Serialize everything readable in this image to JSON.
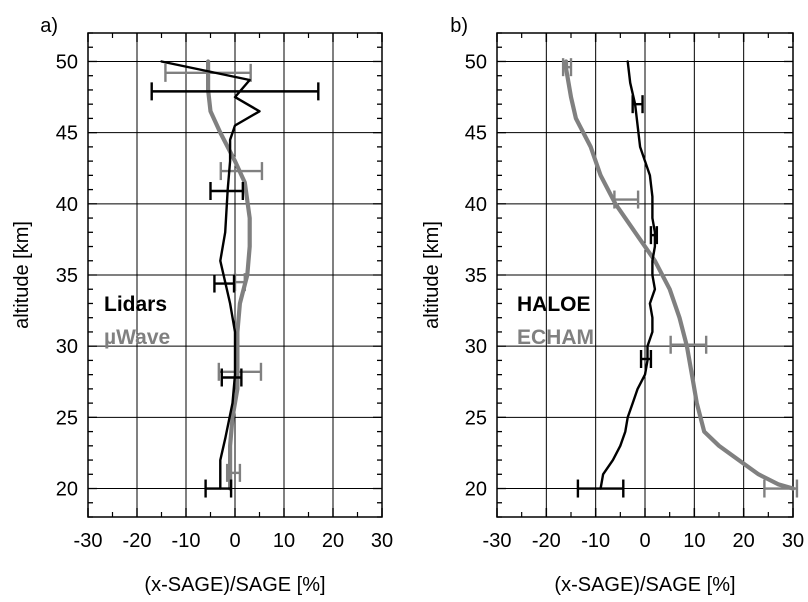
{
  "chart_data": [
    {
      "panel": "a)",
      "type": "line",
      "xlabel": "(x-SAGE)/SAGE [%]",
      "ylabel": "altitude [km]",
      "xlim": [
        -30,
        30
      ],
      "ylim": [
        18,
        52
      ],
      "xticks": [
        -30,
        -20,
        -10,
        0,
        10,
        20,
        30
      ],
      "yticks": [
        20,
        25,
        30,
        35,
        40,
        45,
        50
      ],
      "grid": true,
      "legend_position": "middle-left",
      "series": [
        {
          "name": "Lidars",
          "color": "#000000",
          "points": [
            {
              "x": -15,
              "y": 50
            },
            {
              "x": 3,
              "y": 48.7
            },
            {
              "x": 0,
              "y": 47.5
            },
            {
              "x": 5,
              "y": 46.5
            },
            {
              "x": 0,
              "y": 45.5
            },
            {
              "x": -1,
              "y": 44.5
            },
            {
              "x": -1,
              "y": 43
            },
            {
              "x": -1.5,
              "y": 41
            },
            {
              "x": -2,
              "y": 38
            },
            {
              "x": -3,
              "y": 36
            },
            {
              "x": -2,
              "y": 34.5
            },
            {
              "x": -1,
              "y": 33
            },
            {
              "x": 0,
              "y": 31
            },
            {
              "x": 0,
              "y": 28
            },
            {
              "x": -0.5,
              "y": 26
            },
            {
              "x": -2,
              "y": 23.5
            },
            {
              "x": -3,
              "y": 22
            },
            {
              "x": -3,
              "y": 21
            },
            {
              "x": -3,
              "y": 20
            }
          ],
          "error_bars": [
            {
              "x": 0,
              "y": 47.9,
              "xerr": 17
            },
            {
              "x": -1.7,
              "y": 40.9,
              "xerr": 3.3
            },
            {
              "x": -2.2,
              "y": 34.4,
              "xerr": 2
            },
            {
              "x": -0.7,
              "y": 27.8,
              "xerr": 2
            },
            {
              "x": -3.4,
              "y": 20,
              "xerr": 2.6
            }
          ]
        },
        {
          "name": "µWave",
          "color": "#808080",
          "points": [
            {
              "x": -5.5,
              "y": 50
            },
            {
              "x": -5.5,
              "y": 48
            },
            {
              "x": -5,
              "y": 46.5
            },
            {
              "x": -3,
              "y": 45
            },
            {
              "x": 0,
              "y": 43
            },
            {
              "x": 2,
              "y": 41.5
            },
            {
              "x": 3,
              "y": 39
            },
            {
              "x": 3,
              "y": 37
            },
            {
              "x": 2.5,
              "y": 35
            },
            {
              "x": 1,
              "y": 33
            },
            {
              "x": 0.5,
              "y": 31
            },
            {
              "x": 0.5,
              "y": 29
            },
            {
              "x": 0.5,
              "y": 27
            },
            {
              "x": -0.5,
              "y": 25
            },
            {
              "x": -1,
              "y": 23
            },
            {
              "x": -1,
              "y": 21
            },
            {
              "x": -1,
              "y": 20
            }
          ],
          "error_bars": [
            {
              "x": -5.5,
              "y": 49.2,
              "xerr": 8.7
            },
            {
              "x": 1.3,
              "y": 42.3,
              "xerr": 4.2
            },
            {
              "x": 1,
              "y": 34.5,
              "xerr": 1
            },
            {
              "x": 1,
              "y": 28.2,
              "xerr": 4.3
            },
            {
              "x": -0.3,
              "y": 21.1,
              "xerr": 1.3
            }
          ]
        }
      ]
    },
    {
      "panel": "b)",
      "type": "line",
      "xlabel": "(x-SAGE)/SAGE [%]",
      "ylabel": "altitude [km]",
      "xlim": [
        -30,
        30
      ],
      "ylim": [
        18,
        52
      ],
      "xticks": [
        -30,
        -20,
        -10,
        0,
        10,
        20,
        30
      ],
      "yticks": [
        20,
        25,
        30,
        35,
        40,
        45,
        50
      ],
      "grid": true,
      "legend_position": "middle-left",
      "series": [
        {
          "name": "HALOE",
          "color": "#000000",
          "points": [
            {
              "x": -3.5,
              "y": 50
            },
            {
              "x": -3,
              "y": 48.5
            },
            {
              "x": -2,
              "y": 47
            },
            {
              "x": -1.5,
              "y": 45.5
            },
            {
              "x": -1,
              "y": 44
            },
            {
              "x": 0,
              "y": 43
            },
            {
              "x": 1,
              "y": 42
            },
            {
              "x": 1.5,
              "y": 40.5
            },
            {
              "x": 1.5,
              "y": 39
            },
            {
              "x": 2,
              "y": 38
            },
            {
              "x": 2,
              "y": 37
            },
            {
              "x": 1.5,
              "y": 36
            },
            {
              "x": 1.5,
              "y": 35
            },
            {
              "x": 2,
              "y": 34
            },
            {
              "x": 1,
              "y": 33
            },
            {
              "x": 1.5,
              "y": 32
            },
            {
              "x": 1.5,
              "y": 31
            },
            {
              "x": 0.5,
              "y": 30
            },
            {
              "x": 0.5,
              "y": 29
            },
            {
              "x": 0,
              "y": 28
            },
            {
              "x": -1.5,
              "y": 27
            },
            {
              "x": -2.5,
              "y": 26
            },
            {
              "x": -3.5,
              "y": 25
            },
            {
              "x": -4,
              "y": 24
            },
            {
              "x": -5,
              "y": 23
            },
            {
              "x": -6.5,
              "y": 22
            },
            {
              "x": -8.5,
              "y": 21
            },
            {
              "x": -9,
              "y": 20
            }
          ],
          "error_bars": [
            {
              "x": -1.5,
              "y": 47,
              "xerr": 1
            },
            {
              "x": 1.8,
              "y": 37.8,
              "xerr": 0.6
            },
            {
              "x": 0.2,
              "y": 29.1,
              "xerr": 1
            },
            {
              "x": -9,
              "y": 20,
              "xerr": 4.6
            }
          ]
        },
        {
          "name": "ECHAM",
          "color": "#808080",
          "points": [
            {
              "x": -16,
              "y": 50
            },
            {
              "x": -16,
              "y": 49.5
            },
            {
              "x": -15,
              "y": 47.5
            },
            {
              "x": -14,
              "y": 46
            },
            {
              "x": -11,
              "y": 44
            },
            {
              "x": -9,
              "y": 42
            },
            {
              "x": -6,
              "y": 40
            },
            {
              "x": -2,
              "y": 38
            },
            {
              "x": 2,
              "y": 36
            },
            {
              "x": 5,
              "y": 34
            },
            {
              "x": 7,
              "y": 32
            },
            {
              "x": 8.5,
              "y": 30
            },
            {
              "x": 9.5,
              "y": 28
            },
            {
              "x": 10.5,
              "y": 26
            },
            {
              "x": 12,
              "y": 24
            },
            {
              "x": 15,
              "y": 23
            },
            {
              "x": 19,
              "y": 22
            },
            {
              "x": 23,
              "y": 21
            },
            {
              "x": 27,
              "y": 20.3
            },
            {
              "x": 30,
              "y": 20
            }
          ],
          "error_bars": [
            {
              "x": -15.8,
              "y": 49.6,
              "xerr": 0.8
            },
            {
              "x": -3.8,
              "y": 40.3,
              "xerr": 2.4
            },
            {
              "x": 8.8,
              "y": 30.1,
              "xerr": 3.6
            },
            {
              "x": 27.5,
              "y": 20,
              "xerr": 3.3
            }
          ]
        }
      ]
    }
  ]
}
